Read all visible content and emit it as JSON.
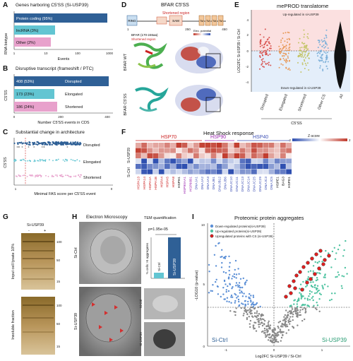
{
  "panels": {
    "A": {
      "letter": "A",
      "title": "Genes harboring C5'SS (Si-USP39)",
      "ylabel": "RNA biotype",
      "xlabel": "Events",
      "bars": [
        {
          "label": "Protein coding (95%)",
          "value": 950,
          "color": "#2f6096"
        },
        {
          "label": "lncRNA (3%)",
          "value": 30,
          "color": "#62c5d2"
        },
        {
          "label": "Other (2%)",
          "value": 20,
          "color": "#e8a1cc"
        }
      ],
      "xticks": [
        "1",
        "10",
        "100",
        "1000"
      ]
    },
    "B": {
      "letter": "B",
      "title": "Disruptive transcript (frameshift / PTC)",
      "ylabel": "C5'SS",
      "xlabel": "Number C5'SS events in CDS",
      "bars": [
        {
          "count": "408 (53%)",
          "label": "Disrupted",
          "value": 408,
          "color": "#2f6096"
        },
        {
          "count": "173 (23%)",
          "label": "Elongated",
          "value": 173,
          "color": "#62c5d2"
        },
        {
          "count": "186 (24%)",
          "label": "Shortened",
          "value": 186,
          "color": "#e8a1cc"
        }
      ],
      "xticks": [
        "0",
        "200",
        "400"
      ]
    },
    "C": {
      "letter": "C",
      "title": "Substantial change in architecture",
      "ylabel": "C5'SS",
      "xlabel": "Minimal FAS score per C5'SS event",
      "rows": [
        "Disrupted",
        "Elongated",
        "Shortened"
      ],
      "xticks": [
        "1",
        "0"
      ]
    },
    "D": {
      "letter": "D",
      "title": "BFAR C5'SS",
      "domains": [
        "RING",
        "SAM",
        "TM",
        "TM",
        "TM",
        "TM"
      ],
      "shortened": "Shortened region",
      "ticks": [
        "1",
        "250",
        "450"
      ],
      "sub1": "BFAR (170-246aa)",
      "sub2": "Shortened region",
      "elec": "Elec. potential",
      "wt": "BFAR WT",
      "mut": "BFAR C5'SS"
    },
    "E": {
      "letter": "E",
      "title": "mePROD translatome",
      "up": "Up-regulated in si-USP39",
      "down": "Down-regulated in si-USP39",
      "ylabel": "LOG2FC Si-USP39 / Si-Ctrl",
      "cats": [
        "Disrupted",
        "Elongated",
        "Shortened",
        "Other CS",
        "All"
      ],
      "xgroup": "C5'SS",
      "yticks": [
        "4",
        "2",
        "0",
        "-2",
        "-4"
      ]
    },
    "F": {
      "letter": "F",
      "title": "Heat Shock response",
      "zlabel": "Z-score",
      "zmin": "-2",
      "zmax": "2",
      "groups": [
        "HSP70",
        "HSP90",
        "HSP40"
      ],
      "rowlabels": [
        "Si-USP39",
        "Si-Ctrl"
      ],
      "genes": [
        "HSPA13",
        "HSPA14",
        "HSPA1A",
        "HSPA1B",
        "HSPA4",
        "HSPA5",
        "HSPA8",
        "HSPH1",
        "HSP90AA1",
        "HSP90B1",
        "DNAJA1",
        "DNAJA2",
        "DNAJA3",
        "DNAJB1",
        "DNAJB12",
        "DNAJB6",
        "DNAJC10",
        "DNAJC11",
        "DNAJC13",
        "DNAJC14",
        "DNAJC25",
        "DNAJC29",
        "DNAJC3",
        "DNAJC5",
        "HSPE1",
        "BAG3",
        "HSPD1"
      ]
    },
    "G": {
      "letter": "G",
      "label": "Si-USP39",
      "minus": "-",
      "plus": "+",
      "top": "Input cell lysate 10%",
      "bottom": "Insoluble fraction",
      "m1": "100",
      "m2": "50",
      "m3": "15",
      "m4": "100",
      "m5": "50",
      "m6": "15"
    },
    "H": {
      "letter": "H",
      "title": "Electron Microscopy",
      "ctrl": "Si-Ctrl",
      "usp": "Si-USP39",
      "quant": "TEM quantification",
      "pval": "p=1.95e-05",
      "ylab": "% cells >5 aggregates",
      "bar1": "Si-Ctrl",
      "bar2": "Si-USP39"
    },
    "I": {
      "letter": "I",
      "title": "Proteomic protein aggregates",
      "legend": [
        "Down-regulated proteins(si-USP39)",
        "Up-regulated proteins(si-USP39)",
        "Upregulated proteins with CS (si-USP39)"
      ],
      "xlabel": "Log2FC Si-USP39 / Si-Ctrl",
      "ylabel": "-LOG10 (p-value)",
      "left": "Si-Ctrl",
      "right": "Si-USP39",
      "xticks": [
        "-1",
        "0",
        "1"
      ],
      "yticks": [
        "0",
        "5",
        "10"
      ]
    }
  }
}
